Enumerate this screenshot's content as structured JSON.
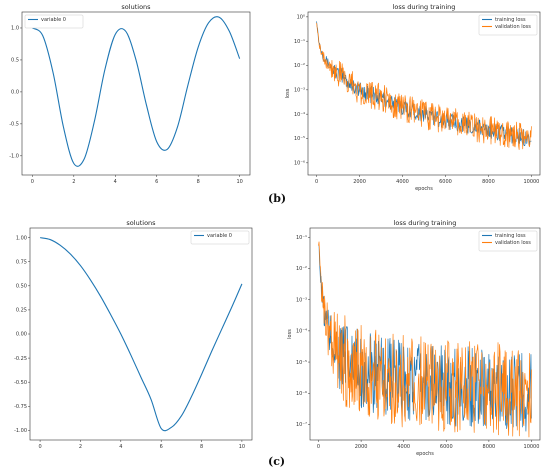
{
  "labels": {
    "b": "(b)",
    "c": "(c)"
  },
  "colors": {
    "blue": "#1f77b4",
    "orange": "#ff7f0e"
  },
  "chart_data": [
    {
      "id": "b_solutions",
      "type": "line",
      "title": "solutions",
      "xlabel": "",
      "ylabel": "",
      "xlim": [
        -0.5,
        10.5
      ],
      "ylim": [
        -1.3,
        1.25
      ],
      "xticks": [
        0,
        2,
        4,
        6,
        8,
        10
      ],
      "yticks": [
        -1.0,
        -0.5,
        0.0,
        0.5,
        1.0
      ],
      "ytick_labels": [
        "-1.0",
        "-0.5",
        "0.0",
        "0.5",
        "1.0"
      ],
      "legend": "top-left",
      "series": [
        {
          "name": "variable 0",
          "color": "#1f77b4",
          "x": [
            0,
            0.5,
            1,
            1.5,
            2,
            2.5,
            3,
            3.5,
            4,
            4.5,
            5,
            5.5,
            6,
            6.5,
            7,
            7.5,
            8,
            8.5,
            9,
            9.5,
            10
          ],
          "y": [
            1.0,
            0.88,
            0.3,
            -0.55,
            -1.12,
            -1.05,
            -0.45,
            0.35,
            0.9,
            0.95,
            0.5,
            -0.2,
            -0.78,
            -0.9,
            -0.55,
            0.1,
            0.7,
            1.08,
            1.17,
            0.95,
            0.52
          ]
        }
      ]
    },
    {
      "id": "b_loss",
      "type": "line",
      "title": "loss during training",
      "xlabel": "epochs",
      "ylabel": "loss",
      "xlim": [
        -400,
        10400
      ],
      "log_y": true,
      "ylim_exp": [
        -6.5,
        0.2
      ],
      "xticks": [
        0,
        2000,
        4000,
        6000,
        8000,
        10000
      ],
      "ytick_exps": [
        0,
        -1,
        -2,
        -3,
        -4,
        -5,
        -6
      ],
      "ytick_labels": [
        "10⁰",
        "10⁻¹",
        "10⁻²",
        "10⁻³",
        "10⁻⁴",
        "10⁻⁵",
        "10⁻⁶"
      ],
      "legend": "top-right",
      "series": [
        {
          "name": "training loss",
          "color": "#1f77b4",
          "x": [
            0,
            100,
            300,
            600,
            1000,
            1500,
            2000,
            3000,
            4000,
            5000,
            6000,
            7000,
            8000,
            9000,
            10000
          ],
          "y_exp": [
            -0.1,
            -1.0,
            -1.6,
            -2.0,
            -2.35,
            -2.7,
            -3.0,
            -3.35,
            -3.7,
            -4.0,
            -4.25,
            -4.45,
            -4.65,
            -4.85,
            -5.0
          ],
          "noise": 0.35
        },
        {
          "name": "validation loss",
          "color": "#ff7f0e",
          "x": [
            0,
            100,
            300,
            600,
            1000,
            1500,
            2000,
            3000,
            4000,
            5000,
            6000,
            7000,
            8000,
            9000,
            10000
          ],
          "y_exp": [
            -0.1,
            -1.0,
            -1.6,
            -2.0,
            -2.35,
            -2.7,
            -3.0,
            -3.35,
            -3.7,
            -4.0,
            -4.25,
            -4.45,
            -4.65,
            -4.85,
            -5.0
          ],
          "noise": 0.6
        }
      ]
    },
    {
      "id": "c_solutions",
      "type": "line",
      "title": "solutions",
      "xlabel": "",
      "ylabel": "",
      "xlim": [
        -0.5,
        10.5
      ],
      "ylim": [
        -1.1,
        1.1
      ],
      "xticks": [
        0,
        2,
        4,
        6,
        8,
        10
      ],
      "yticks": [
        -1.0,
        -0.75,
        -0.5,
        -0.25,
        0.0,
        0.25,
        0.5,
        0.75,
        1.0
      ],
      "ytick_labels": [
        "-1.00",
        "-0.75",
        "-0.50",
        "-0.25",
        "0.00",
        "0.25",
        "0.50",
        "0.75",
        "1.00"
      ],
      "legend": "top-right",
      "series": [
        {
          "name": "variable 0",
          "color": "#1f77b4",
          "x": [
            0,
            0.5,
            1,
            1.5,
            2,
            2.5,
            3,
            3.5,
            4,
            4.5,
            5,
            5.5,
            6,
            6.5,
            7,
            7.5,
            8,
            8.5,
            9,
            9.5,
            10
          ],
          "y": [
            1.0,
            0.98,
            0.92,
            0.83,
            0.71,
            0.56,
            0.39,
            0.2,
            0.0,
            -0.22,
            -0.45,
            -0.68,
            -0.98,
            -0.97,
            -0.85,
            -0.65,
            -0.42,
            -0.18,
            0.05,
            0.28,
            0.52
          ]
        }
      ]
    },
    {
      "id": "c_loss",
      "type": "line",
      "title": "loss during training",
      "xlabel": "epochs",
      "ylabel": "loss",
      "xlim": [
        -400,
        10400
      ],
      "log_y": true,
      "ylim_exp": [
        -7.5,
        -0.7
      ],
      "xticks": [
        0,
        2000,
        4000,
        6000,
        8000,
        10000
      ],
      "ytick_exps": [
        -1,
        -2,
        -3,
        -4,
        -5,
        -6,
        -7
      ],
      "ytick_labels": [
        "10⁻¹",
        "10⁻²",
        "10⁻³",
        "10⁻⁴",
        "10⁻⁵",
        "10⁻⁶",
        "10⁻⁷"
      ],
      "legend": "top-right",
      "series": [
        {
          "name": "training loss",
          "color": "#1f77b4",
          "x": [
            0,
            100,
            300,
            600,
            1000,
            1500,
            2000,
            3000,
            4000,
            5000,
            6000,
            7000,
            8000,
            9000,
            10000
          ],
          "y_exp": [
            -0.9,
            -2.5,
            -3.6,
            -4.3,
            -4.8,
            -5.1,
            -5.3,
            -5.5,
            -5.6,
            -5.7,
            -5.75,
            -5.8,
            -5.85,
            -5.9,
            -5.95
          ],
          "noise": 1.3
        },
        {
          "name": "validation loss",
          "color": "#ff7f0e",
          "x": [
            0,
            100,
            300,
            600,
            1000,
            1500,
            2000,
            3000,
            4000,
            5000,
            6000,
            7000,
            8000,
            9000,
            10000
          ],
          "y_exp": [
            -0.9,
            -2.5,
            -3.6,
            -4.3,
            -4.8,
            -5.1,
            -5.3,
            -5.5,
            -5.6,
            -5.7,
            -5.75,
            -5.8,
            -5.85,
            -5.9,
            -5.95
          ],
          "noise": 1.5
        }
      ]
    }
  ]
}
